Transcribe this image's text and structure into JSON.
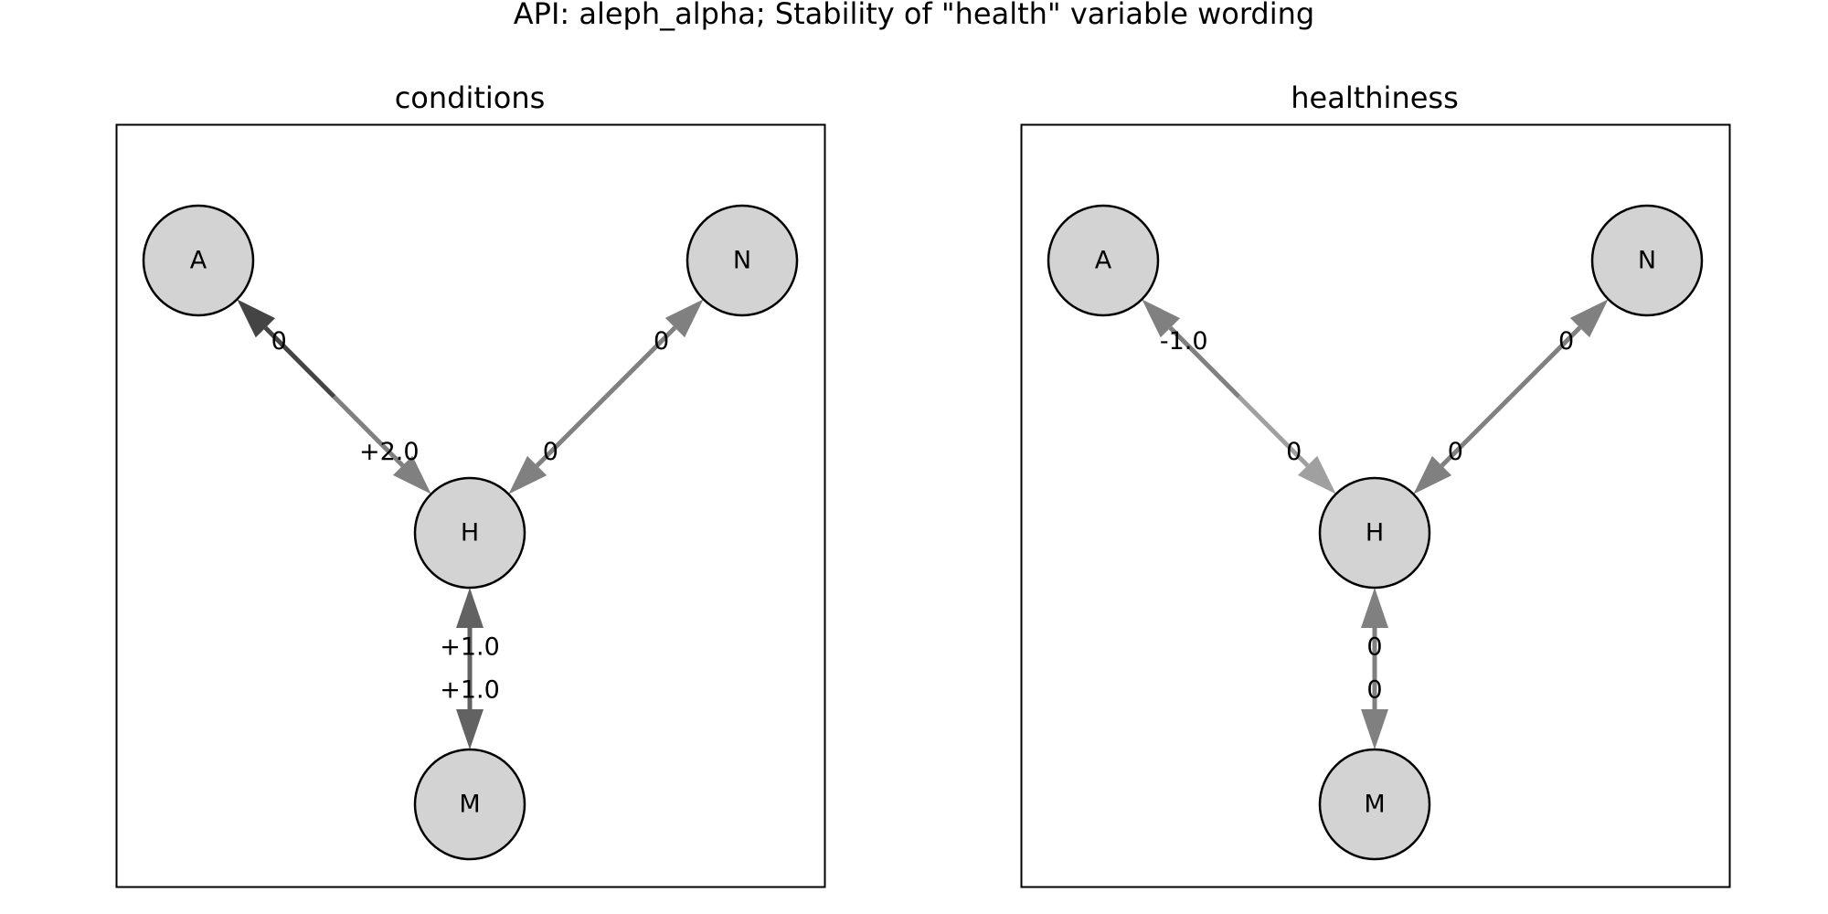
{
  "title": "API: aleph_alpha; Stability of \"health\" variable wording",
  "panels": [
    {
      "title": "conditions",
      "nodes": [
        "A",
        "N",
        "H",
        "M"
      ],
      "edges": [
        {
          "from": "H",
          "to": "A",
          "label": "+2.0",
          "color": "#444444"
        },
        {
          "from": "A",
          "to": "H",
          "label": "0",
          "color": "#808080"
        },
        {
          "from": "H",
          "to": "N",
          "label": "0",
          "color": "#808080"
        },
        {
          "from": "N",
          "to": "H",
          "label": "0",
          "color": "#808080"
        },
        {
          "from": "M",
          "to": "H",
          "label": "+1.0",
          "color": "#626262"
        },
        {
          "from": "H",
          "to": "M",
          "label": "+1.0",
          "color": "#626262"
        }
      ]
    },
    {
      "title": "healthiness",
      "nodes": [
        "A",
        "N",
        "H",
        "M"
      ],
      "edges": [
        {
          "from": "H",
          "to": "A",
          "label": "0",
          "color": "#808080"
        },
        {
          "from": "A",
          "to": "H",
          "label": "-1.0",
          "color": "#a0a0a0"
        },
        {
          "from": "H",
          "to": "N",
          "label": "0",
          "color": "#808080"
        },
        {
          "from": "N",
          "to": "H",
          "label": "0",
          "color": "#808080"
        },
        {
          "from": "M",
          "to": "H",
          "label": "0",
          "color": "#808080"
        },
        {
          "from": "H",
          "to": "M",
          "label": "0",
          "color": "#808080"
        }
      ]
    }
  ],
  "colors": {
    "node_fill": "#d3d3d3",
    "node_stroke": "#000000",
    "frame": "#000000"
  }
}
